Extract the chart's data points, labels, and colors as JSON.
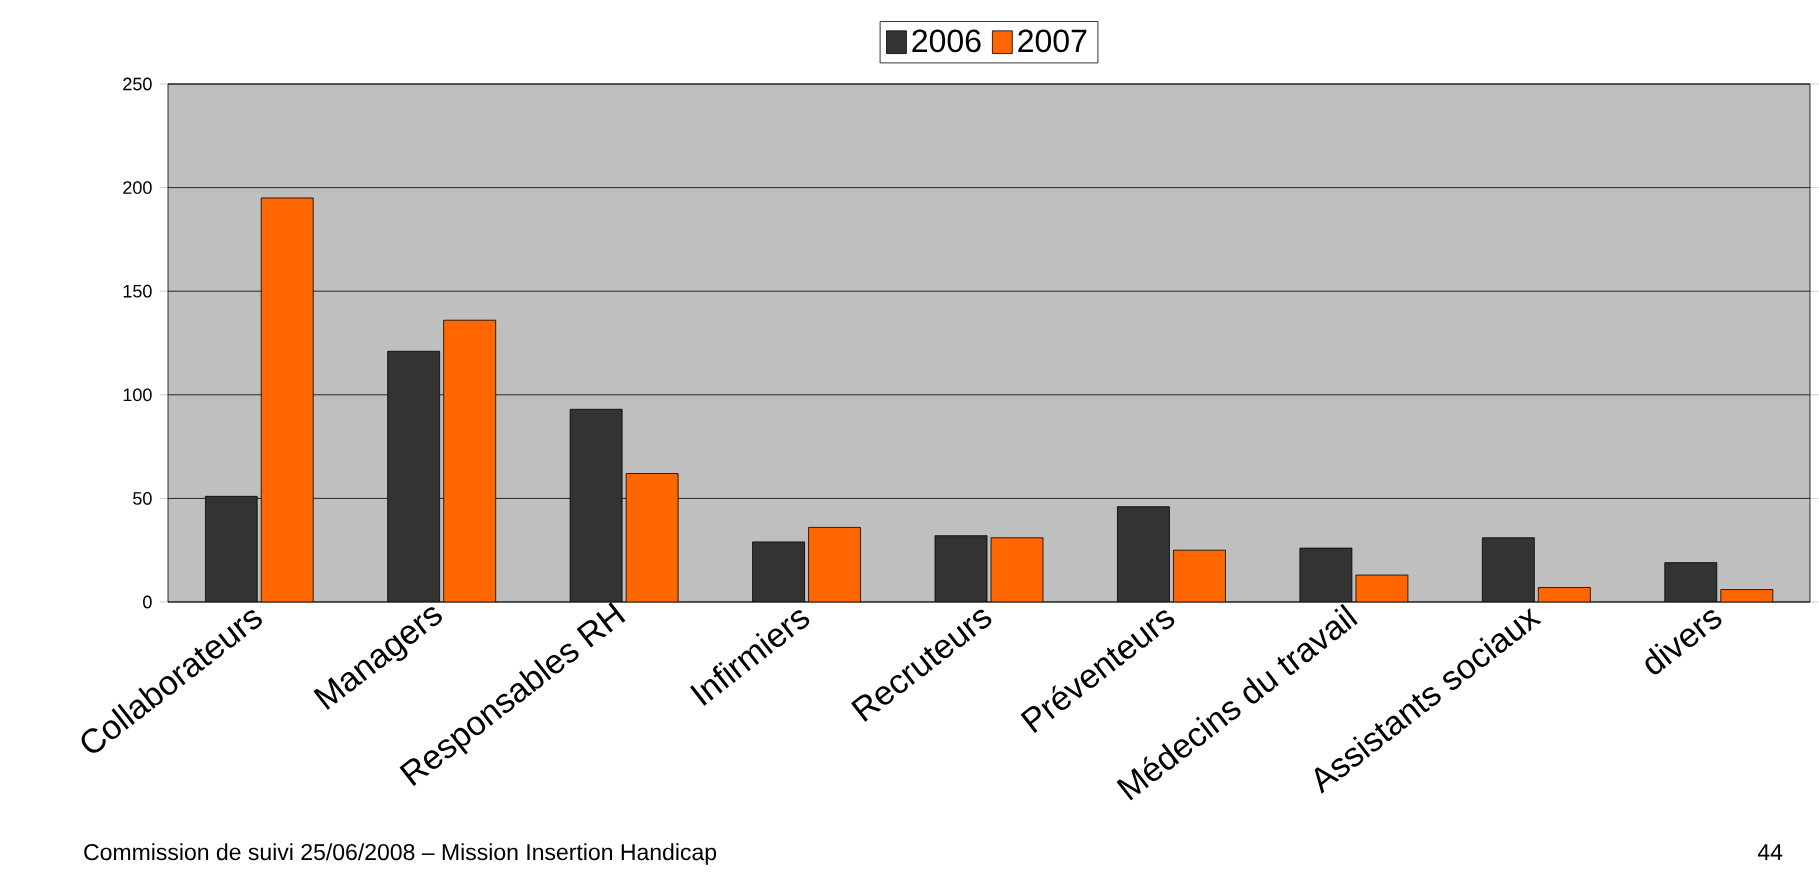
{
  "chart_data": {
    "type": "bar",
    "categories": [
      "Collaborateurs",
      "Managers",
      "Responsables RH",
      "Infirmiers",
      "Recruteurs",
      "Préventeurs",
      "Médecins du travail",
      "Assistants sociaux",
      "divers"
    ],
    "series": [
      {
        "name": "2006",
        "color": "#333333",
        "values": [
          51,
          121,
          93,
          29,
          32,
          46,
          26,
          31,
          19
        ]
      },
      {
        "name": "2007",
        "color": "#ff6600",
        "values": [
          195,
          136,
          62,
          36,
          31,
          25,
          13,
          7,
          6
        ]
      }
    ],
    "ylim": [
      0,
      250
    ],
    "yticks": [
      0,
      50,
      100,
      150,
      200,
      250
    ],
    "grid": "y",
    "legend": "top",
    "annotations": [
      "Commission de suivi 25/06/2008 – Mission Insertion Handicap",
      "44"
    ]
  }
}
